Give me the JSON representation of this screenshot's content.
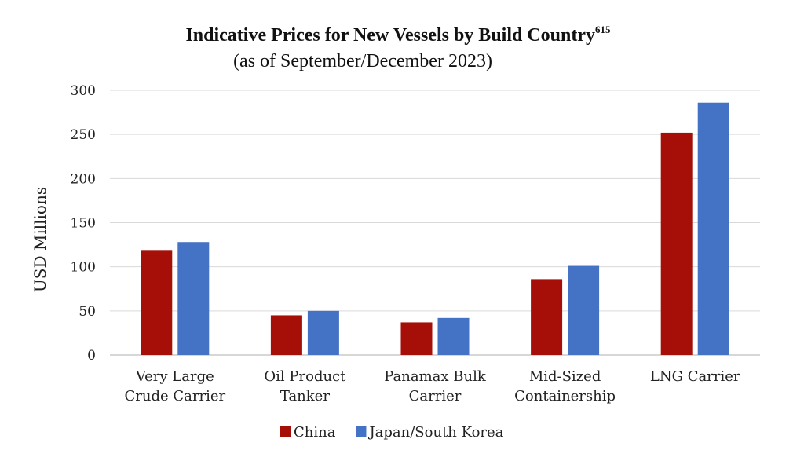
{
  "chart_data": {
    "type": "bar",
    "title": "Indicative Prices for New Vessels by Build Country",
    "title_superscript": "615",
    "subtitle": "(as of September/December 2023)",
    "ylabel": "USD Millions",
    "ylim": [
      0,
      300
    ],
    "yticks": [
      0,
      50,
      100,
      150,
      200,
      250,
      300
    ],
    "grid": true,
    "legend_position": "bottom",
    "categories": [
      [
        "Very Large",
        "Crude Carrier"
      ],
      [
        "Oil Product",
        "Tanker"
      ],
      [
        "Panamax Bulk",
        "Carrier"
      ],
      [
        "Mid-Sized",
        "Containership"
      ],
      [
        "LNG Carrier"
      ]
    ],
    "series": [
      {
        "name": "China",
        "color": "#a50f08",
        "values": [
          119,
          45,
          37,
          86,
          252
        ]
      },
      {
        "name": "Japan/South Korea",
        "color": "#4472c4",
        "values": [
          128,
          50,
          42,
          101,
          286
        ]
      }
    ]
  }
}
